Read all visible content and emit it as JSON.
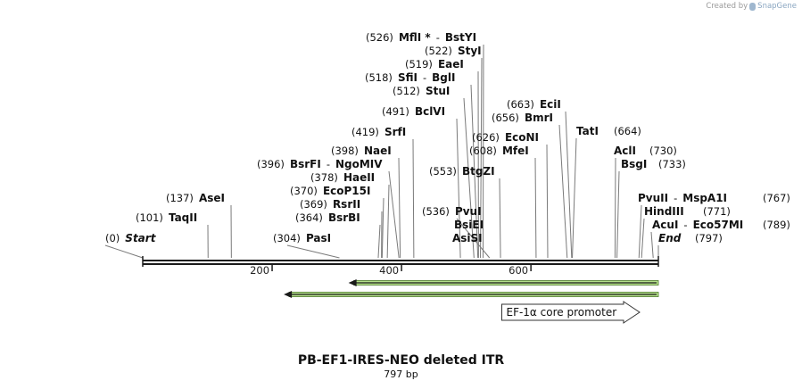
{
  "brand": {
    "prefix": "Created by",
    "name": "SnapGene",
    "icon": "snapgene-logo-icon"
  },
  "map": {
    "title": "PB-EF1-IRES-NEO deleted ITR",
    "length_label": "797 bp",
    "start": 0,
    "end": 797,
    "axis_ticks": [
      200,
      400,
      600
    ],
    "sites": [
      {
        "parts": [
          {
            "t": "(0)",
            "s": "pos"
          },
          {
            "t": "Start",
            "s": "it"
          }
        ],
        "pos": 0
      },
      {
        "parts": [
          {
            "t": "(101)",
            "s": "pos"
          },
          {
            "t": "TaqII",
            "s": "nm"
          }
        ],
        "pos": 101
      },
      {
        "parts": [
          {
            "t": "(137)",
            "s": "pos"
          },
          {
            "t": "AseI",
            "s": "nm"
          }
        ],
        "pos": 137
      },
      {
        "parts": [
          {
            "t": "(304)",
            "s": "pos"
          },
          {
            "t": "PasI",
            "s": "nm"
          }
        ],
        "pos": 304
      },
      {
        "parts": [
          {
            "t": "(364)",
            "s": "pos"
          },
          {
            "t": "BsrBI",
            "s": "nm"
          }
        ],
        "pos": 364
      },
      {
        "parts": [
          {
            "t": "(369)",
            "s": "pos"
          },
          {
            "t": "RsrII",
            "s": "nm"
          }
        ],
        "pos": 369
      },
      {
        "parts": [
          {
            "t": "(370)",
            "s": "pos"
          },
          {
            "t": "EcoP15I",
            "s": "nm"
          }
        ],
        "pos": 370
      },
      {
        "parts": [
          {
            "t": "(378)",
            "s": "pos"
          },
          {
            "t": "HaeII",
            "s": "nm"
          }
        ],
        "pos": 378
      },
      {
        "parts": [
          {
            "t": "(396)",
            "s": "pos"
          },
          {
            "t": "BsrFI",
            "s": "nm"
          },
          {
            "t": "-",
            "s": "pos"
          },
          {
            "t": "NgoMIV",
            "s": "nm"
          }
        ],
        "pos": 396
      },
      {
        "parts": [
          {
            "t": "(398)",
            "s": "pos"
          },
          {
            "t": "NaeI",
            "s": "nm"
          }
        ],
        "pos": 398
      },
      {
        "parts": [
          {
            "t": "(419)",
            "s": "pos"
          },
          {
            "t": "SrfI",
            "s": "nm"
          }
        ],
        "pos": 419
      },
      {
        "parts": [
          {
            "t": "(491)",
            "s": "pos"
          },
          {
            "t": "BclVI",
            "s": "nm"
          }
        ],
        "pos": 491
      },
      {
        "parts": [
          {
            "t": "(512)",
            "s": "pos"
          },
          {
            "t": "StuI",
            "s": "nm"
          }
        ],
        "pos": 512
      },
      {
        "parts": [
          {
            "t": "(518)",
            "s": "pos"
          },
          {
            "t": "SfiI",
            "s": "nm"
          },
          {
            "t": "-",
            "s": "pos"
          },
          {
            "t": "BglI",
            "s": "nm"
          }
        ],
        "pos": 518
      },
      {
        "parts": [
          {
            "t": "(519)",
            "s": "pos"
          },
          {
            "t": "EaeI",
            "s": "nm"
          }
        ],
        "pos": 519
      },
      {
        "parts": [
          {
            "t": "(522)",
            "s": "pos"
          },
          {
            "t": "StyI",
            "s": "nm"
          }
        ],
        "pos": 522
      },
      {
        "parts": [
          {
            "t": "(526)",
            "s": "pos"
          },
          {
            "t": "MflI *",
            "s": "nm"
          },
          {
            "t": "-",
            "s": "pos"
          },
          {
            "t": "BstYI",
            "s": "nm"
          }
        ],
        "pos": 526
      },
      {
        "parts": [
          {
            "t": "(536)",
            "s": "pos"
          },
          {
            "t": "PvuI",
            "s": "nm"
          }
        ],
        "pos": 536
      },
      {
        "parts": [
          {
            "t": "BsiEI",
            "s": "nm"
          }
        ],
        "pos": 536
      },
      {
        "parts": [
          {
            "t": "AsiSI",
            "s": "nm"
          }
        ],
        "pos": 536
      },
      {
        "parts": [
          {
            "t": "(553)",
            "s": "pos"
          },
          {
            "t": "BtgZI",
            "s": "nm"
          }
        ],
        "pos": 553
      },
      {
        "parts": [
          {
            "t": "(608)",
            "s": "pos"
          },
          {
            "t": "MfeI",
            "s": "nm"
          }
        ],
        "pos": 608
      },
      {
        "parts": [
          {
            "t": "(626)",
            "s": "pos"
          },
          {
            "t": "EcoNI",
            "s": "nm"
          }
        ],
        "pos": 626
      },
      {
        "parts": [
          {
            "t": "(656)",
            "s": "pos"
          },
          {
            "t": "BmrI",
            "s": "nm"
          }
        ],
        "pos": 656
      },
      {
        "parts": [
          {
            "t": "(663)",
            "s": "pos"
          },
          {
            "t": "EciI",
            "s": "nm"
          }
        ],
        "pos": 663
      },
      {
        "parts": [
          {
            "t": "TatI",
            "s": "nm"
          }
        ],
        "pos": 664
      },
      {
        "parts": [
          {
            "t": "(664)",
            "s": "pos"
          }
        ],
        "pos": 664
      },
      {
        "parts": [
          {
            "t": "AclI",
            "s": "nm"
          }
        ],
        "pos": 730
      },
      {
        "parts": [
          {
            "t": "(730)",
            "s": "pos"
          }
        ],
        "pos": 730
      },
      {
        "parts": [
          {
            "t": "BsgI",
            "s": "nm"
          }
        ],
        "pos": 733
      },
      {
        "parts": [
          {
            "t": "(733)",
            "s": "pos"
          }
        ],
        "pos": 733
      },
      {
        "parts": [
          {
            "t": "PvuII",
            "s": "nm"
          },
          {
            "t": "-",
            "s": "pos"
          },
          {
            "t": "MspA1I",
            "s": "nm"
          }
        ],
        "pos": 767
      },
      {
        "parts": [
          {
            "t": "(767)",
            "s": "pos"
          }
        ],
        "pos": 767
      },
      {
        "parts": [
          {
            "t": "HindIII",
            "s": "nm"
          }
        ],
        "pos": 771
      },
      {
        "parts": [
          {
            "t": "(771)",
            "s": "pos"
          }
        ],
        "pos": 771
      },
      {
        "parts": [
          {
            "t": "AcuI",
            "s": "nm"
          },
          {
            "t": "-",
            "s": "pos"
          },
          {
            "t": "Eco57MI",
            "s": "nm"
          }
        ],
        "pos": 789
      },
      {
        "parts": [
          {
            "t": "(789)",
            "s": "pos"
          }
        ],
        "pos": 789
      },
      {
        "parts": [
          {
            "t": "End",
            "s": "it"
          }
        ],
        "pos": 797
      },
      {
        "parts": [
          {
            "t": "(797)",
            "s": "pos"
          }
        ],
        "pos": 797
      }
    ],
    "features": [
      {
        "name": "",
        "start": 318,
        "end": 797,
        "direction": "reverse",
        "color": "#b5e08a"
      },
      {
        "name": "",
        "start": 218,
        "end": 797,
        "direction": "reverse",
        "color": "#b5e08a"
      },
      {
        "name": "EF-1α core promoter",
        "start": 555,
        "end": 768,
        "direction": "forward",
        "color": "#ffffff"
      }
    ]
  }
}
